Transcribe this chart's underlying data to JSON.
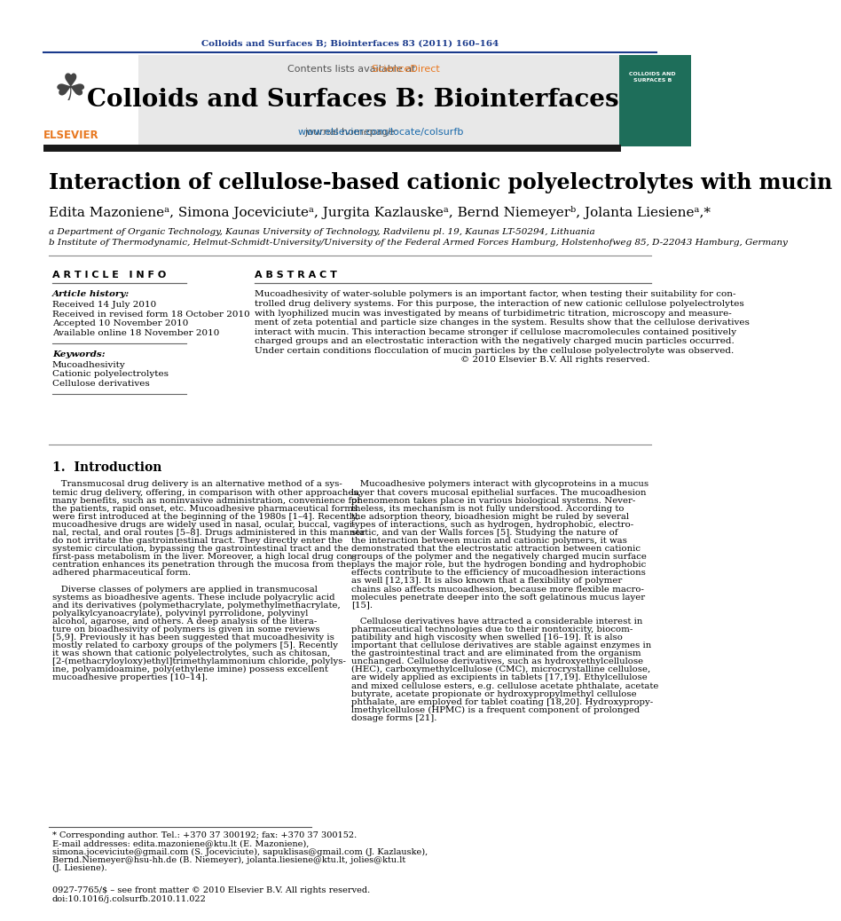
{
  "page_bg": "#ffffff",
  "top_journal_ref": "Colloids and Surfaces B; Biointerfaces 83 (2011) 160–164",
  "top_journal_ref_color": "#1a3a8c",
  "header_bg": "#e8e8e8",
  "contents_text": "Contents lists available at ",
  "sciencedirect_text": "ScienceDirect",
  "sciencedirect_color": "#e87820",
  "journal_title": "Colloids and Surfaces B: Biointerfaces",
  "journal_title_color": "#000000",
  "journal_url_label": "journal homepage: ",
  "journal_url": "www.elsevier.com/locate/colsurfb",
  "journal_url_color": "#1a6aab",
  "separator_color": "#1a3a8c",
  "article_title": "Interaction of cellulose-based cationic polyelectrolytes with mucin",
  "affil_a": "a Department of Organic Technology, Kaunas University of Technology, Radvilenu pl. 19, Kaunas LT-50294, Lithuania",
  "affil_b": "b Institute of Thermodynamic, Helmut-Schmidt-University/University of the Federal Armed Forces Hamburg, Holstenhofweg 85, D-22043 Hamburg, Germany",
  "article_info_title": "A R T I C L E   I N F O",
  "article_history_label": "Article history:",
  "received": "Received 14 July 2010",
  "received_revised": "Received in revised form 18 October 2010",
  "accepted": "Accepted 10 November 2010",
  "available": "Available online 18 November 2010",
  "keywords_label": "Keywords:",
  "keyword1": "Mucoadhesivity",
  "keyword2": "Cationic polyelectrolytes",
  "keyword3": "Cellulose derivatives",
  "abstract_title": "A B S T R A C T",
  "copyright": "© 2010 Elsevier B.V. All rights reserved.",
  "intro_title": "1.  Introduction",
  "footnote_star": "* Corresponding author. Tel.: +370 37 300192; fax: +370 37 300152.",
  "footnote_email1": "E-mail addresses: edita.mazoniene@ktu.lt (E. Mazoniene),",
  "footnote_email2": "simona.joceviciute@gmail.com (S. Joceviciute), sapuklisas@gmail.com (J. Kazlauske),",
  "footnote_email3": "Bernd.Niemeyer@hsu-hh.de (B. Niemeyer), jolanta.liesiene@ktu.lt, jolies@ktu.lt",
  "footnote_email4": "(J. Liesiene).",
  "bottom_ref": "0927-7765/$ – see front matter © 2010 Elsevier B.V. All rights reserved.",
  "bottom_doi": "doi:10.1016/j.colsurfb.2010.11.022",
  "elsevier_color": "#e87820",
  "dark_bar_color": "#1a1a1a",
  "abstract_lines": [
    "Mucoadhesivity of water-soluble polymers is an important factor, when testing their suitability for con-",
    "trolled drug delivery systems. For this purpose, the interaction of new cationic cellulose polyelectrolytes",
    "with lyophilized mucin was investigated by means of turbidimetric titration, microscopy and measure-",
    "ment of zeta potential and particle size changes in the system. Results show that the cellulose derivatives",
    "interact with mucin. This interaction became stronger if cellulose macromolecules contained positively",
    "charged groups and an electrostatic interaction with the negatively charged mucin particles occurred.",
    "Under certain conditions flocculation of mucin particles by the cellulose polyelectrolyte was observed."
  ],
  "col1_lines": [
    "   Transmucosal drug delivery is an alternative method of a sys-",
    "temic drug delivery, offering, in comparison with other approaches,",
    "many benefits, such as noninvasive administration, convenience for",
    "the patients, rapid onset, etc. Mucoadhesive pharmaceutical forms",
    "were first introduced at the beginning of the 1980s [1–4]. Recently,",
    "mucoadhesive drugs are widely used in nasal, ocular, buccal, vagi-",
    "nal, rectal, and oral routes [5–8]. Drugs administered in this manner",
    "do not irritate the gastrointestinal tract. They directly enter the",
    "systemic circulation, bypassing the gastrointestinal tract and the",
    "first-pass metabolism in the liver. Moreover, a high local drug con-",
    "centration enhances its penetration through the mucosa from the",
    "adhered pharmaceutical form.",
    "",
    "   Diverse classes of polymers are applied in transmucosal",
    "systems as bioadhesive agents. These include polyacrylic acid",
    "and its derivatives (polymethacrylate, polymethylmethacrylate,",
    "polyalkylcyanoacrylate), polyvinyl pyrrolidone, polyvinyl",
    "alcohol, agarose, and others. A deep analysis of the litera-",
    "ture on bioadhesivity of polymers is given in some reviews",
    "[5,9]. Previously it has been suggested that mucoadhesivity is",
    "mostly related to carboxy groups of the polymers [5]. Recently",
    "it was shown that cationic polyelectrolytes, such as chitosan,",
    "[2-(methacryloyloxy)ethyl]trimethylammonium chloride, polylys-",
    "ine, polyamidoamine, poly(ethylene imine) possess excellent",
    "mucoadhesive properties [10–14]."
  ],
  "col2_lines": [
    "   Mucoadhesive polymers interact with glycoproteins in a mucus",
    "layer that covers mucosal epithelial surfaces. The mucoadhesion",
    "phenomenon takes place in various biological systems. Never-",
    "theless, its mechanism is not fully understood. According to",
    "the adsorption theory, bioadhesion might be ruled by several",
    "types of interactions, such as hydrogen, hydrophobic, electro-",
    "static, and van der Walls forces [5]. Studying the nature of",
    "the interaction between mucin and cationic polymers, it was",
    "demonstrated that the electrostatic attraction between cationic",
    "groups of the polymer and the negatively charged mucin surface",
    "plays the major role, but the hydrogen bonding and hydrophobic",
    "effects contribute to the efficiency of mucoadhesion interactions",
    "as well [12,13]. It is also known that a flexibility of polymer",
    "chains also affects mucoadhesion, because more flexible macro-",
    "molecules penetrate deeper into the soft gelatinous mucus layer",
    "[15].",
    "",
    "   Cellulose derivatives have attracted a considerable interest in",
    "pharmaceutical technologies due to their nontoxicity, biocom-",
    "patibility and high viscosity when swelled [16–19]. It is also",
    "important that cellulose derivatives are stable against enzymes in",
    "the gastrointestinal tract and are eliminated from the organism",
    "unchanged. Cellulose derivatives, such as hydroxyethylcellulose",
    "(HEC), carboxymethylcellulose (CMC), microcrystalline cellulose,",
    "are widely applied as excipients in tablets [17,19]. Ethylcellulose",
    "and mixed cellulose esters, e.g. cellulose acetate phthalate, acetate",
    "butyrate, acetate propionate or hydroxypropylmethyl cellulose",
    "phthalate, are employed for tablet coating [18,20]. Hydroxypropy-",
    "lmethylcellulose (HPMC) is a frequent component of prolonged",
    "dosage forms [21]."
  ]
}
